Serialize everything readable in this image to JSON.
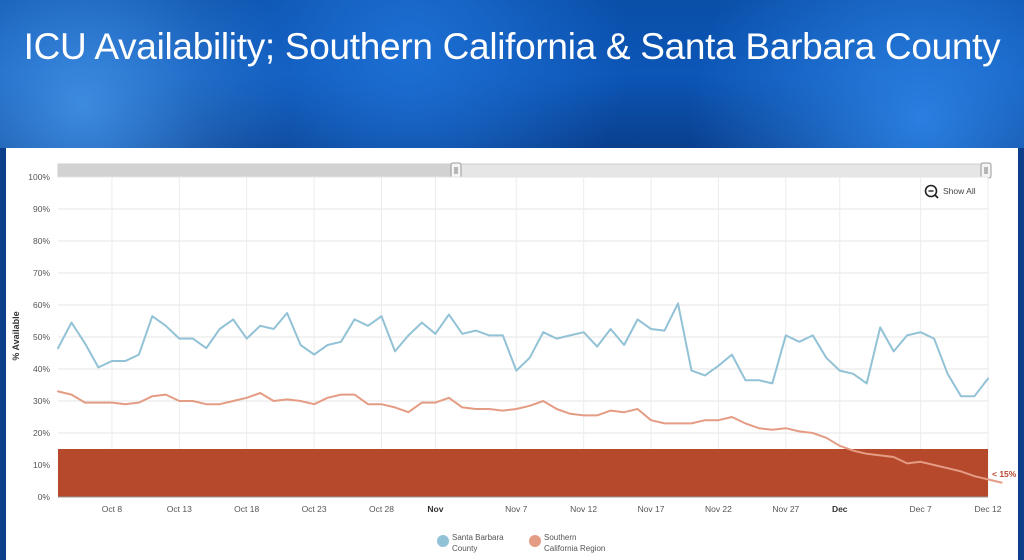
{
  "header": {
    "title": "ICU Availability; Southern California & Santa Barbara County"
  },
  "toolbar": {
    "show_all_label": "Show All"
  },
  "chart_data": {
    "type": "line",
    "ylabel": "% Available",
    "ylim": [
      0,
      100
    ],
    "y_ticks": [
      0,
      10,
      20,
      30,
      40,
      50,
      60,
      70,
      80,
      90,
      100
    ],
    "y_tick_labels": [
      "0%",
      "10%",
      "20%",
      "30%",
      "40%",
      "50%",
      "60%",
      "70%",
      "80%",
      "90%",
      "100%"
    ],
    "x_range": [
      "Oct 4",
      "Dec 13"
    ],
    "x_ticks": [
      {
        "day": 4,
        "label": "Oct 8",
        "bold": false
      },
      {
        "day": 9,
        "label": "Oct 13",
        "bold": false
      },
      {
        "day": 14,
        "label": "Oct 18",
        "bold": false
      },
      {
        "day": 19,
        "label": "Oct 23",
        "bold": false
      },
      {
        "day": 24,
        "label": "Oct 28",
        "bold": false
      },
      {
        "day": 28,
        "label": "Nov",
        "bold": true
      },
      {
        "day": 34,
        "label": "Nov 7",
        "bold": false
      },
      {
        "day": 39,
        "label": "Nov 12",
        "bold": false
      },
      {
        "day": 44,
        "label": "Nov 17",
        "bold": false
      },
      {
        "day": 49,
        "label": "Nov 22",
        "bold": false
      },
      {
        "day": 54,
        "label": "Nov 27",
        "bold": false
      },
      {
        "day": 58,
        "label": "Dec",
        "bold": true
      },
      {
        "day": 64,
        "label": "Dec 7",
        "bold": false
      },
      {
        "day": 69,
        "label": "Dec 12",
        "bold": false
      }
    ],
    "threshold": {
      "value": 15,
      "label": "< 15%",
      "color": "#b6482b"
    },
    "series": [
      {
        "name": "Santa Barbara County",
        "color": "#92c2d6",
        "values": [
          46.5,
          54.5,
          48,
          40.5,
          42.5,
          42.5,
          44.5,
          56.5,
          53.5,
          49.5,
          49.5,
          46.5,
          52.5,
          55.5,
          49.5,
          53.5,
          52.5,
          57.5,
          47.5,
          44.5,
          47.5,
          48.5,
          55.5,
          53.5,
          56.5,
          45.5,
          50.5,
          54.5,
          51,
          57,
          51,
          52,
          50.5,
          50.5,
          39.5,
          43.5,
          51.5,
          49.5,
          50.5,
          51.5,
          47,
          52.5,
          47.5,
          55.5,
          52.5,
          52,
          60.5,
          39.5,
          38,
          41,
          44.5,
          36.5,
          36.5,
          35.5,
          50.5,
          48.5,
          50.5,
          43.5,
          39.5,
          38.5,
          35.5,
          53,
          45.5,
          50.5,
          51.5,
          49.5,
          38.5,
          31.5,
          31.5,
          37
        ]
      },
      {
        "name": "Southern California Region",
        "color": "#e49c84",
        "values": [
          33,
          32,
          29.5,
          29.5,
          29.5,
          29,
          29.5,
          31.5,
          32,
          30,
          30,
          29,
          29,
          30,
          31,
          32.5,
          30,
          30.5,
          30,
          29,
          31,
          32,
          32,
          29,
          29,
          28,
          26.5,
          29.5,
          29.5,
          31,
          28,
          27.5,
          27.5,
          27,
          27.5,
          28.5,
          30,
          27.5,
          26,
          25.5,
          25.5,
          27,
          26.5,
          27.5,
          24,
          23,
          23,
          23,
          24,
          24,
          25,
          23,
          21.5,
          21,
          21.5,
          20.5,
          20,
          18.5,
          16,
          14.5,
          13.5,
          13,
          12.5,
          10.5,
          11,
          10,
          9,
          8,
          6.5,
          5.5,
          4.5
        ]
      }
    ]
  },
  "legend": {
    "items": [
      {
        "line1": "Santa Barbara",
        "line2": "County"
      },
      {
        "line1": "Southern",
        "line2": "California Region"
      }
    ]
  }
}
